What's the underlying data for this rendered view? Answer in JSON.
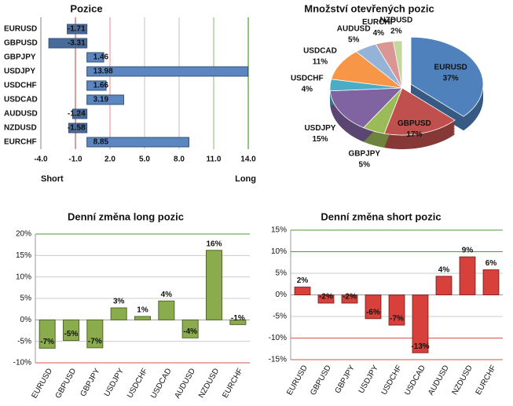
{
  "chart_data": [
    {
      "type": "hbar",
      "title": "Pozice",
      "categories": [
        "EURUSD",
        "GBPUSD",
        "GBPJPY",
        "USDJPY",
        "USDCHF",
        "USDCAD",
        "AUDUSD",
        "NZDUSD",
        "EURCHF"
      ],
      "values": [
        -1.71,
        -3.31,
        1.46,
        13.98,
        1.66,
        3.19,
        -1.24,
        -1.58,
        8.85
      ],
      "color": "#5b86c0",
      "xlim": [
        -4,
        14
      ],
      "xticks": [
        {
          "value": -4,
          "label": "-4.0"
        },
        {
          "value": -1,
          "label": "-1.0"
        },
        {
          "value": 2,
          "label": "2.0"
        },
        {
          "value": 5,
          "label": "5.0"
        },
        {
          "value": 8,
          "label": "8.0"
        },
        {
          "value": 11,
          "label": "11.0"
        },
        {
          "value": 14,
          "label": "14.0"
        }
      ],
      "grid": true,
      "grid_colors": [
        "#999999",
        "#d9534f",
        "#e8a0a0",
        "#cccccc",
        "#cccccc",
        "#9bc48a",
        "#4f9a3a"
      ],
      "annotations": [
        "Short",
        "Long"
      ]
    },
    {
      "type": "pie",
      "title": "Množství otevřených pozic",
      "categories": [
        "EURUSD",
        "GBPUSD",
        "GBPJPY",
        "USDJPY",
        "USDCHF",
        "USDCAD",
        "AUDUSD",
        "EURCHF",
        "NZDUSD"
      ],
      "values": [
        37,
        17,
        5,
        15,
        4,
        11,
        5,
        4,
        2
      ],
      "value_labels": [
        "37%",
        "17%",
        "5%",
        "15%",
        "4%",
        "11%",
        "5%",
        "4%",
        "2%"
      ],
      "colors": [
        "#4f81bd",
        "#c0504d",
        "#9bbb59",
        "#8064a2",
        "#4bacc6",
        "#f79646",
        "#95b3d7",
        "#d99694",
        "#c3d69b"
      ]
    },
    {
      "type": "bar",
      "title": "Denní změna long pozic",
      "categories": [
        "EURUSD",
        "GBPUSD",
        "GBPJPY",
        "USDJPY",
        "USDCHF",
        "USDCAD",
        "AUDUSD",
        "NZDUSD",
        "EURCHF"
      ],
      "values": [
        -6.6,
        -4.8,
        -6.5,
        2.8,
        0.8,
        4.4,
        -4.2,
        16.2,
        -1.1
      ],
      "value_labels": [
        "-7%",
        "-5%",
        "-7%",
        "3%",
        "1%",
        "4%",
        "-4%",
        "16%",
        "-1%"
      ],
      "color": "#8aac4c",
      "ylim": [
        -10,
        20
      ],
      "yticks": [
        {
          "value": 20,
          "label": "20%"
        },
        {
          "value": 15,
          "label": "15%"
        },
        {
          "value": 10,
          "label": "10%"
        },
        {
          "value": 5,
          "label": "5%"
        },
        {
          "value": 0,
          "label": "0%"
        },
        {
          "value": -5,
          "label": "-5%"
        },
        {
          "value": -10,
          "label": "-10%"
        }
      ],
      "grid": true,
      "grid_colors": [
        "#4f9a3a",
        "#cccccc",
        "#cccccc",
        "#cccccc",
        "#999999",
        "#cccccc",
        "#d9534f"
      ]
    },
    {
      "type": "bar",
      "title": "Denní změna short pozic",
      "categories": [
        "EURUSD",
        "GBPUSD",
        "GBPJPY",
        "USDJPY",
        "USDCHF",
        "USDCAD",
        "AUDUSD",
        "NZDUSD",
        "EURCHF"
      ],
      "values": [
        1.8,
        -1.9,
        -1.9,
        -5.5,
        -7.0,
        -13.4,
        4.3,
        8.8,
        5.8
      ],
      "value_labels": [
        "2%",
        "-2%",
        "-2%",
        "-6%",
        "-7%",
        "-13%",
        "4%",
        "9%",
        "6%"
      ],
      "color": "#d8403c",
      "ylim": [
        -15,
        15
      ],
      "yticks": [
        {
          "value": 15,
          "label": "15%"
        },
        {
          "value": 10,
          "label": "10%"
        },
        {
          "value": 5,
          "label": "5%"
        },
        {
          "value": 0,
          "label": "0%"
        },
        {
          "value": -5,
          "label": "-5%"
        },
        {
          "value": -10,
          "label": "-10%"
        },
        {
          "value": -15,
          "label": "-15%"
        }
      ],
      "grid": true,
      "grid_colors": [
        "#4f9a3a",
        "#4f9a3a",
        "#cccccc",
        "#999999",
        "#cccccc",
        "#d9534f",
        "#d9534f"
      ]
    }
  ]
}
